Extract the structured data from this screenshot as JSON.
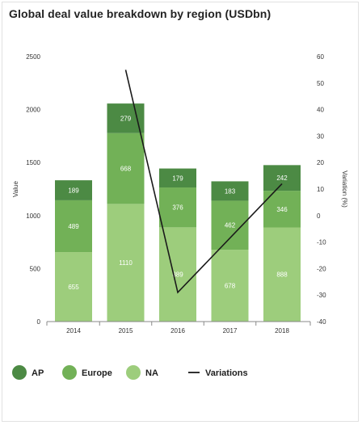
{
  "chart_data": {
    "type": "bar",
    "stacked": true,
    "title": "Global deal value breakdown by region (USDbn)",
    "categories": [
      "2014",
      "2015",
      "2016",
      "2017",
      "2018"
    ],
    "series": [
      {
        "name": "NA",
        "values": [
          655,
          1110,
          889,
          678,
          888
        ],
        "color": "#9dcd7c"
      },
      {
        "name": "Europe",
        "values": [
          489,
          668,
          376,
          462,
          346
        ],
        "color": "#72b157"
      },
      {
        "name": "AP",
        "values": [
          189,
          279,
          179,
          183,
          242
        ],
        "color": "#4c8a44"
      }
    ],
    "line_series": {
      "name": "Variations",
      "axis": "right",
      "color": "#1a1a1a",
      "values": [
        null,
        55,
        -29,
        null,
        12
      ]
    },
    "ylabel": "Value",
    "ylabel_right": "Variation (%)",
    "ylim": [
      0,
      2500
    ],
    "yticks": [
      0,
      500,
      1000,
      1500,
      2000,
      2500
    ],
    "ylim_right": [
      -40,
      60
    ],
    "yticks_right": [
      60,
      50,
      40,
      30,
      20,
      10,
      0,
      -10,
      -20,
      -30,
      -40
    ],
    "legend": {
      "position": "bottom-left",
      "items": [
        {
          "label": "AP",
          "kind": "dot",
          "color": "#4c8a44"
        },
        {
          "label": "Europe",
          "kind": "dot",
          "color": "#72b157"
        },
        {
          "label": "NA",
          "kind": "dot",
          "color": "#9dcd7c"
        },
        {
          "label": "Variations",
          "kind": "line",
          "color": "#1a1a1a"
        }
      ]
    },
    "grid": false
  }
}
